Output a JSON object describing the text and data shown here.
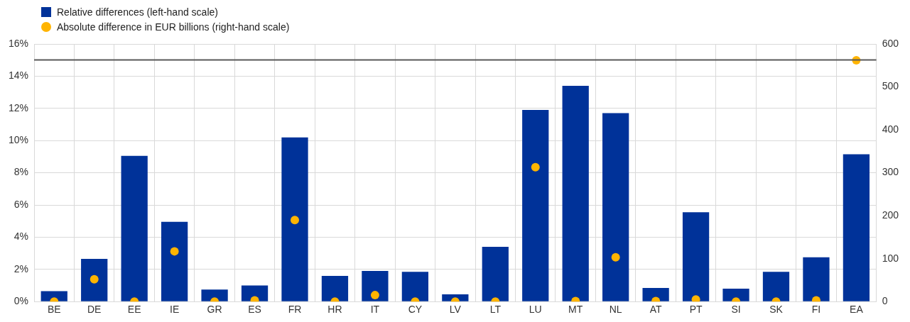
{
  "chart_data": {
    "type": "bar",
    "categories": [
      "BE",
      "DE",
      "EE",
      "IE",
      "GR",
      "ES",
      "FR",
      "HR",
      "IT",
      "CY",
      "LV",
      "LT",
      "LU",
      "MT",
      "NL",
      "AT",
      "PT",
      "SI",
      "SK",
      "FI",
      "EA"
    ],
    "series": [
      {
        "name": "Relative differences (left-hand scale)",
        "color": "#003299",
        "values": [
          0.65,
          2.65,
          9.05,
          4.95,
          0.75,
          1.0,
          10.2,
          1.6,
          1.9,
          1.85,
          0.45,
          3.4,
          11.9,
          13.4,
          11.7,
          0.85,
          5.55,
          0.8,
          1.85,
          2.75,
          9.15
        ]
      },
      {
        "name": "Absolute difference in EUR billions (right-hand scale)",
        "type": "scatter",
        "axis": "y2",
        "color": "#ffb400",
        "values": [
          0,
          52,
          0,
          117,
          0,
          3,
          190,
          0,
          15,
          0,
          0,
          0,
          313,
          1,
          103,
          1,
          5,
          0,
          0,
          3,
          562
        ]
      }
    ],
    "ylim": [
      0,
      16
    ],
    "yticks": [
      {
        "value": 0,
        "label": "0%"
      },
      {
        "value": 2,
        "label": "2%"
      },
      {
        "value": 4,
        "label": "4%"
      },
      {
        "value": 6,
        "label": "6%"
      },
      {
        "value": 8,
        "label": "8%"
      },
      {
        "value": 10,
        "label": "10%"
      },
      {
        "value": 12,
        "label": "12%"
      },
      {
        "value": 14,
        "label": "14%"
      },
      {
        "value": 16,
        "label": "16%"
      }
    ],
    "y2lim": [
      0,
      600
    ],
    "y2ticks": [
      0,
      100,
      200,
      300,
      400,
      500,
      600
    ],
    "ref_lines": [
      {
        "axis": "y2",
        "value": 563,
        "color": "#595959"
      }
    ],
    "grid": true,
    "legend": "top left",
    "marker": "circle"
  }
}
